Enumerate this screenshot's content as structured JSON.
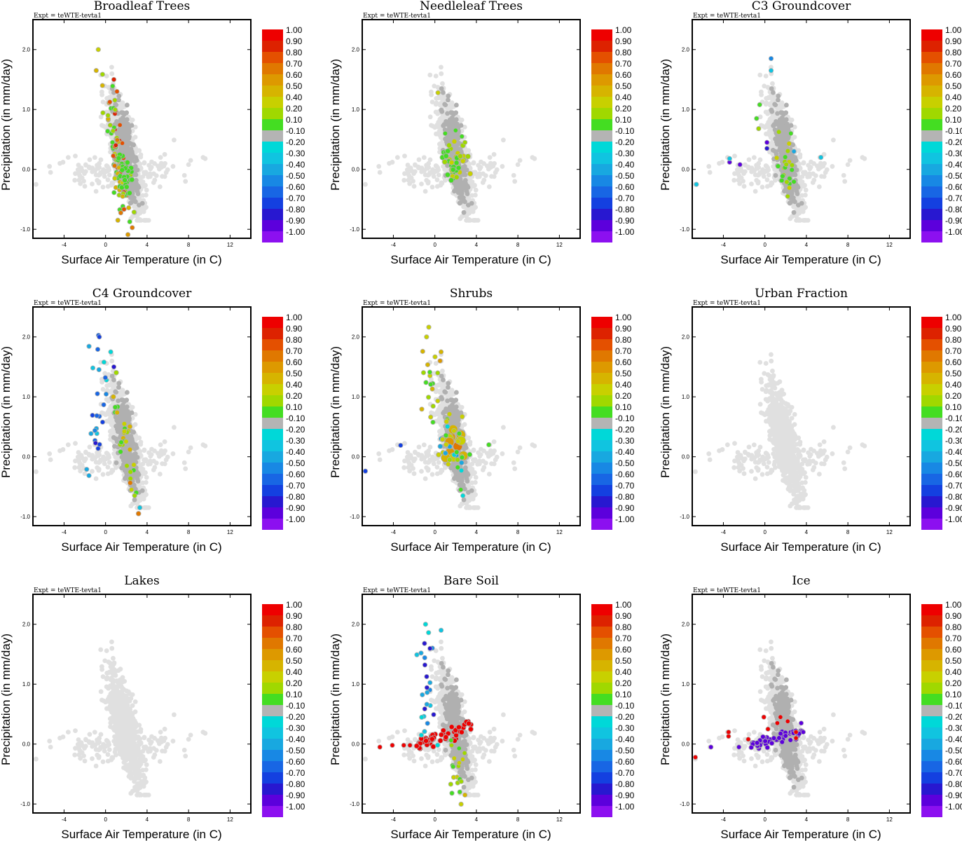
{
  "experiment_label": "Expt = teWTE-tevta1",
  "colors": {
    "background_points": "#e0e0e0",
    "neutral_points": "#b0b0b0"
  },
  "colorbar": {
    "labels": [
      "1.00",
      "0.90",
      "0.80",
      "0.70",
      "0.60",
      "0.50",
      "0.40",
      "0.20",
      "0.10",
      "-0.10",
      "-0.20",
      "-0.30",
      "-0.40",
      "-0.50",
      "-0.60",
      "-0.70",
      "-0.80",
      "-0.90",
      "-1.00"
    ],
    "colors": [
      "#ee0000",
      "#dd2200",
      "#e45000",
      "#e07800",
      "#dd9900",
      "#d6b400",
      "#c8d000",
      "#a0d800",
      "#44dd22",
      "#b4b4b4",
      "#00d8d8",
      "#10c4e0",
      "#18a8e0",
      "#1888e4",
      "#1866e4",
      "#1440e0",
      "#2818d0",
      "#5c00dc",
      "#8c10f0"
    ]
  },
  "chart_data": [
    {
      "type": "scatter",
      "title": "Broadleaf Trees",
      "xlabel": "Surface Air Temperature (in C)",
      "ylabel": "Precipitation (in mm/day)",
      "xlim": [
        -7,
        14
      ],
      "ylim": [
        -1.15,
        2.5
      ],
      "xticks": [
        "-4",
        "0",
        "4",
        "8",
        "12"
      ],
      "yticks": [
        "2.0",
        "1.0",
        "0.0",
        "-1.0"
      ],
      "highlight": "broadleaf"
    },
    {
      "type": "scatter",
      "title": "Needleleaf Trees",
      "xlabel": "Surface Air Temperature (in C)",
      "ylabel": "Precipitation (in mm/day)",
      "xlim": [
        -7,
        14
      ],
      "ylim": [
        -1.15,
        2.5
      ],
      "xticks": [
        "-4",
        "0",
        "4",
        "8",
        "12"
      ],
      "yticks": [
        "2.0",
        "1.0",
        "0.0",
        "-1.0"
      ],
      "highlight": "needleleaf"
    },
    {
      "type": "scatter",
      "title": "C3 Groundcover",
      "xlabel": "Surface Air Temperature (in C)",
      "ylabel": "Precipitation (in mm/day)",
      "xlim": [
        -7,
        14
      ],
      "ylim": [
        -1.15,
        2.5
      ],
      "xticks": [
        "-4",
        "0",
        "4",
        "8",
        "12"
      ],
      "yticks": [
        "2.0",
        "1.0",
        "0.0",
        "-1.0"
      ],
      "highlight": "c3"
    },
    {
      "type": "scatter",
      "title": "C4 Groundcover",
      "xlabel": "Surface Air Temperature (in C)",
      "ylabel": "Precipitation (in mm/day)",
      "xlim": [
        -7,
        14
      ],
      "ylim": [
        -1.15,
        2.5
      ],
      "xticks": [
        "-4",
        "0",
        "4",
        "8",
        "12"
      ],
      "yticks": [
        "2.0",
        "1.0",
        "0.0",
        "-1.0"
      ],
      "highlight": "c4"
    },
    {
      "type": "scatter",
      "title": "Shrubs",
      "xlabel": "Surface Air Temperature (in C)",
      "ylabel": "Precipitation (in mm/day)",
      "xlim": [
        -7,
        14
      ],
      "ylim": [
        -1.15,
        2.5
      ],
      "xticks": [
        "-4",
        "0",
        "4",
        "8",
        "12"
      ],
      "yticks": [
        "2.0",
        "1.0",
        "0.0",
        "-1.0"
      ],
      "highlight": "shrubs"
    },
    {
      "type": "scatter",
      "title": "Urban Fraction",
      "xlabel": "Surface Air Temperature (in C)",
      "ylabel": "Precipitation (in mm/day)",
      "xlim": [
        -7,
        14
      ],
      "ylim": [
        -1.15,
        2.5
      ],
      "xticks": [
        "-4",
        "0",
        "4",
        "8",
        "12"
      ],
      "yticks": [
        "2.0",
        "1.0",
        "0.0",
        "-1.0"
      ],
      "highlight": "none"
    },
    {
      "type": "scatter",
      "title": "Lakes",
      "xlabel": "Surface Air Temperature (in C)",
      "ylabel": "Precipitation (in mm/day)",
      "xlim": [
        -7,
        14
      ],
      "ylim": [
        -1.15,
        2.5
      ],
      "xticks": [
        "-4",
        "0",
        "4",
        "8",
        "12"
      ],
      "yticks": [
        "2.0",
        "1.0",
        "0.0",
        "-1.0"
      ],
      "highlight": "none"
    },
    {
      "type": "scatter",
      "title": "Bare Soil",
      "xlabel": "Surface Air Temperature (in C)",
      "ylabel": "Precipitation (in mm/day)",
      "xlim": [
        -7,
        14
      ],
      "ylim": [
        -1.15,
        2.5
      ],
      "xticks": [
        "-4",
        "0",
        "4",
        "8",
        "12"
      ],
      "yticks": [
        "2.0",
        "1.0",
        "0.0",
        "-1.0"
      ],
      "highlight": "baresoil"
    },
    {
      "type": "scatter",
      "title": "Ice",
      "xlabel": "Surface Air Temperature (in C)",
      "ylabel": "Precipitation (in mm/day)",
      "xlim": [
        -7,
        14
      ],
      "ylim": [
        -1.15,
        2.5
      ],
      "xticks": [
        "-4",
        "0",
        "4",
        "8",
        "12"
      ],
      "yticks": [
        "2.0",
        "1.0",
        "0.0",
        "-1.0"
      ],
      "highlight": "ice"
    }
  ]
}
